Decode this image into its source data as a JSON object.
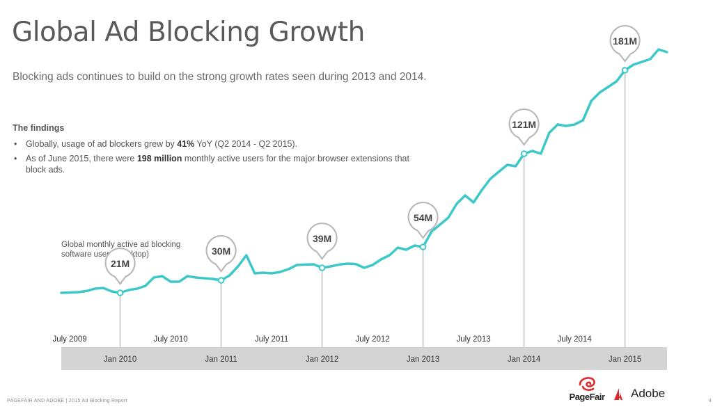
{
  "slide": {
    "title": "Global Ad Blocking Growth",
    "subtitle": "Blocking ads continues to build on the strong growth rates seen during 2013 and 2014.",
    "findings_title": "The findings",
    "bullets": [
      {
        "pre": "Globally, usage of ad blockers grew by ",
        "bold": "41%",
        "post": " YoY (Q2 2014 - Q2 2015)."
      },
      {
        "pre": "As of June 2015, there were ",
        "bold": "198 million",
        "post": " monthly active users for the major browser extensions that block ads."
      }
    ],
    "chart_note": "Global monthly active ad blocking software users (desktop)",
    "footer": "PAGEFAIR AND ADOBE | 2015 Ad Blocking Report",
    "page_number": "4"
  },
  "logos": {
    "pagefair": "PageFair",
    "adobe": "Adobe"
  },
  "colors": {
    "line": "#3cc8c8",
    "axis_band": "#d4d4d4",
    "callout_stroke": "#b9b9b9",
    "accent_red": "#e0252b"
  },
  "chart_data": {
    "type": "line",
    "title": "Global Ad Blocking Growth",
    "ylabel": "Global monthly active ad blocking software users (desktop)",
    "units": "millions",
    "x_start": "2009-06",
    "x_end": "2015-06",
    "ylim": [
      0,
      200
    ],
    "grid": false,
    "legend": "none",
    "x_ticks_top": [
      "July 2009",
      "July 2010",
      "July 2011",
      "July 2012",
      "July 2013",
      "July 2014"
    ],
    "x_ticks_bottom": [
      "Jan 2010",
      "Jan 2011",
      "Jan 2012",
      "Jan 2013",
      "Jan 2014",
      "Jan 2015"
    ],
    "series": [
      {
        "values": [
          [
            "2009-06",
            21
          ],
          [
            "2009-07",
            21.2
          ],
          [
            "2009-08",
            21.5
          ],
          [
            "2009-09",
            22.3
          ],
          [
            "2009-10",
            24
          ],
          [
            "2009-11",
            24.5
          ],
          [
            "2009-12",
            22
          ],
          [
            "2010-01",
            21
          ],
          [
            "2010-02",
            23
          ],
          [
            "2010-03",
            24
          ],
          [
            "2010-04",
            26
          ],
          [
            "2010-05",
            32
          ],
          [
            "2010-06",
            33
          ],
          [
            "2010-07",
            29
          ],
          [
            "2010-08",
            29
          ],
          [
            "2010-09",
            33
          ],
          [
            "2010-10",
            32
          ],
          [
            "2010-11",
            31.5
          ],
          [
            "2010-12",
            31
          ],
          [
            "2011-01",
            30
          ],
          [
            "2011-02",
            33.5
          ],
          [
            "2011-03",
            40
          ],
          [
            "2011-04",
            48
          ],
          [
            "2011-05",
            35
          ],
          [
            "2011-06",
            35.5
          ],
          [
            "2011-07",
            35
          ],
          [
            "2011-08",
            36
          ],
          [
            "2011-09",
            38
          ],
          [
            "2011-10",
            41
          ],
          [
            "2011-11",
            41.3
          ],
          [
            "2011-12",
            41.5
          ],
          [
            "2012-01",
            39
          ],
          [
            "2012-02",
            40
          ],
          [
            "2012-03",
            41.3
          ],
          [
            "2012-04",
            42
          ],
          [
            "2012-05",
            41.7
          ],
          [
            "2012-06",
            39
          ],
          [
            "2012-07",
            41
          ],
          [
            "2012-08",
            45
          ],
          [
            "2012-09",
            48
          ],
          [
            "2012-10",
            53.5
          ],
          [
            "2012-11",
            52
          ],
          [
            "2012-12",
            55
          ],
          [
            "2013-01",
            54
          ],
          [
            "2013-02",
            65
          ],
          [
            "2013-03",
            70
          ],
          [
            "2013-04",
            75
          ],
          [
            "2013-05",
            85
          ],
          [
            "2013-06",
            91
          ],
          [
            "2013-07",
            86
          ],
          [
            "2013-08",
            95
          ],
          [
            "2013-09",
            103
          ],
          [
            "2013-10",
            108
          ],
          [
            "2013-11",
            113
          ],
          [
            "2013-12",
            112
          ],
          [
            "2014-01",
            121
          ],
          [
            "2014-02",
            123
          ],
          [
            "2014-03",
            121
          ],
          [
            "2014-04",
            136
          ],
          [
            "2014-05",
            142
          ],
          [
            "2014-06",
            141
          ],
          [
            "2014-07",
            142
          ],
          [
            "2014-08",
            145
          ],
          [
            "2014-09",
            159
          ],
          [
            "2014-10",
            165
          ],
          [
            "2014-11",
            169
          ],
          [
            "2014-12",
            173
          ],
          [
            "2015-01",
            181
          ],
          [
            "2015-02",
            185
          ],
          [
            "2015-03",
            187
          ],
          [
            "2015-04",
            189
          ],
          [
            "2015-05",
            196
          ],
          [
            "2015-06",
            194
          ]
        ]
      }
    ],
    "callouts": [
      {
        "date": "2010-01",
        "value": 21,
        "label": "21M"
      },
      {
        "date": "2011-01",
        "value": 30,
        "label": "30M"
      },
      {
        "date": "2012-01",
        "value": 39,
        "label": "39M"
      },
      {
        "date": "2013-01",
        "value": 54,
        "label": "54M"
      },
      {
        "date": "2014-01",
        "value": 121,
        "label": "121M"
      },
      {
        "date": "2015-01",
        "value": 181,
        "label": "181M"
      }
    ]
  }
}
